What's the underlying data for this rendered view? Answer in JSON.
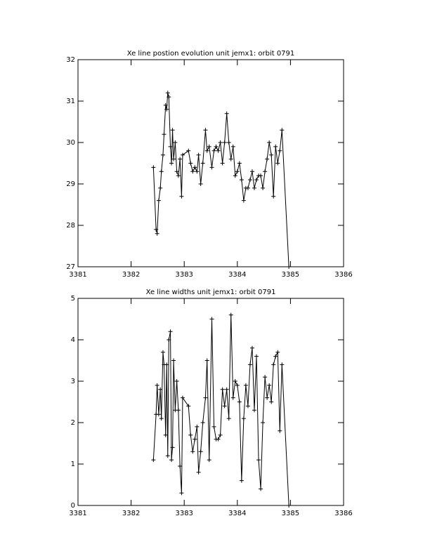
{
  "chart_data": [
    {
      "type": "line",
      "title": "Xe line postion evolution unit jemx1: orbit 0791",
      "x": [
        3382.42,
        3382.47,
        3382.49,
        3382.52,
        3382.55,
        3382.57,
        3382.6,
        3382.62,
        3382.65,
        3382.67,
        3382.69,
        3382.71,
        3382.74,
        3382.76,
        3382.78,
        3382.8,
        3382.83,
        3382.86,
        3382.89,
        3382.92,
        3382.95,
        3382.97,
        3383.08,
        3383.12,
        3383.16,
        3383.2,
        3383.24,
        3383.27,
        3383.31,
        3383.35,
        3383.4,
        3383.43,
        3383.47,
        3383.52,
        3383.56,
        3383.6,
        3383.64,
        3383.68,
        3383.72,
        3383.76,
        3383.8,
        3383.84,
        3383.88,
        3383.92,
        3383.96,
        3384.0,
        3384.04,
        3384.08,
        3384.12,
        3384.16,
        3384.2,
        3384.24,
        3384.28,
        3384.32,
        3384.36,
        3384.4,
        3384.44,
        3384.48,
        3384.52,
        3384.56,
        3384.6,
        3384.64,
        3384.68,
        3384.72,
        3384.76,
        3384.8,
        3384.84,
        3384.97
      ],
      "series": [
        {
          "color": "#000000",
          "values": [
            29.4,
            27.9,
            27.8,
            28.6,
            28.9,
            29.3,
            29.7,
            30.2,
            30.9,
            30.8,
            31.2,
            31.1,
            29.9,
            29.5,
            30.3,
            29.6,
            30.0,
            29.3,
            29.2,
            29.6,
            28.7,
            29.7,
            29.8,
            29.5,
            29.3,
            29.4,
            29.3,
            29.7,
            29.0,
            29.5,
            30.3,
            29.8,
            29.9,
            29.4,
            29.8,
            29.9,
            29.8,
            30.0,
            29.5,
            30.0,
            30.7,
            30.0,
            29.6,
            29.9,
            29.2,
            29.3,
            29.5,
            29.1,
            28.6,
            28.9,
            28.9,
            29.1,
            29.3,
            28.9,
            29.1,
            29.2,
            29.2,
            28.9,
            29.3,
            29.6,
            30.0,
            29.7,
            28.7,
            29.9,
            29.5,
            29.8,
            30.3,
            27.0
          ]
        }
      ],
      "xlim": [
        3381,
        3386
      ],
      "xticks": [
        3381,
        3382,
        3383,
        3384,
        3385,
        3386
      ],
      "ylim": [
        27,
        32
      ],
      "yticks": [
        27,
        28,
        29,
        30,
        31,
        32
      ]
    },
    {
      "type": "line",
      "title": "Xe line widths unit jemx1: orbit 0791",
      "x": [
        3382.42,
        3382.47,
        3382.49,
        3382.52,
        3382.55,
        3382.57,
        3382.6,
        3382.62,
        3382.65,
        3382.67,
        3382.69,
        3382.71,
        3382.74,
        3382.76,
        3382.78,
        3382.8,
        3382.83,
        3382.86,
        3382.89,
        3382.92,
        3382.95,
        3382.97,
        3383.08,
        3383.12,
        3383.16,
        3383.2,
        3383.24,
        3383.27,
        3383.31,
        3383.35,
        3383.4,
        3383.43,
        3383.47,
        3383.52,
        3383.56,
        3383.6,
        3383.64,
        3383.68,
        3383.72,
        3383.76,
        3383.8,
        3383.84,
        3383.88,
        3383.92,
        3383.96,
        3384.0,
        3384.04,
        3384.08,
        3384.12,
        3384.16,
        3384.2,
        3384.24,
        3384.28,
        3384.32,
        3384.36,
        3384.4,
        3384.44,
        3384.48,
        3384.52,
        3384.56,
        3384.6,
        3384.64,
        3384.68,
        3384.72,
        3384.76,
        3384.8,
        3384.84,
        3384.97
      ],
      "series": [
        {
          "color": "#000000",
          "values": [
            1.1,
            2.2,
            2.9,
            2.2,
            2.8,
            2.1,
            3.7,
            3.4,
            1.7,
            3.4,
            1.2,
            4.0,
            4.2,
            1.1,
            1.4,
            3.5,
            2.3,
            3.0,
            2.3,
            0.95,
            0.3,
            2.6,
            2.4,
            1.7,
            1.3,
            1.6,
            1.9,
            0.8,
            1.3,
            2.0,
            2.6,
            3.5,
            1.1,
            4.5,
            1.9,
            1.6,
            1.6,
            1.7,
            2.8,
            2.4,
            2.8,
            2.1,
            4.6,
            2.6,
            3.0,
            2.9,
            2.5,
            0.6,
            2.1,
            2.9,
            2.4,
            3.4,
            3.8,
            2.3,
            3.6,
            1.1,
            0.4,
            2.0,
            3.1,
            2.6,
            2.9,
            2.5,
            3.4,
            3.6,
            3.7,
            1.8,
            3.4,
            0.0
          ]
        }
      ],
      "xlim": [
        3381,
        3386
      ],
      "xticks": [
        3381,
        3382,
        3383,
        3384,
        3385,
        3386
      ],
      "ylim": [
        0,
        5
      ],
      "yticks": [
        0,
        1,
        2,
        3,
        4,
        5
      ]
    }
  ]
}
